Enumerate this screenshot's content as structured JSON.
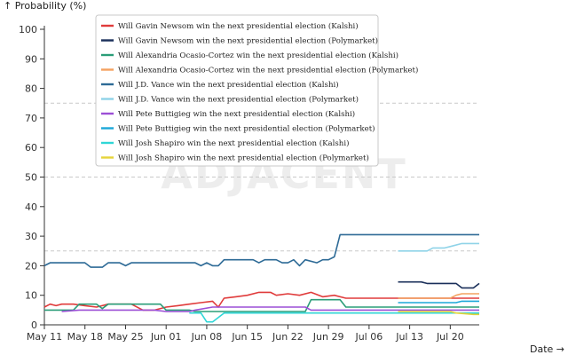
{
  "chart_data": {
    "type": "line",
    "title": "",
    "ylabel": "↑ Probability (%)",
    "xlabel": "Date →",
    "watermark": "ADJACENT",
    "ylim": [
      0,
      100
    ],
    "yticks": [
      0,
      10,
      20,
      30,
      40,
      50,
      60,
      70,
      80,
      90,
      100
    ],
    "reference_lines": [
      25,
      50,
      75
    ],
    "xlim": [
      "2025-05-11",
      "2025-07-25"
    ],
    "xticks": [
      {
        "date": "2025-05-11",
        "label": "May 11"
      },
      {
        "date": "2025-05-18",
        "label": "May 18"
      },
      {
        "date": "2025-05-25",
        "label": "May 25"
      },
      {
        "date": "2025-06-01",
        "label": "Jun 01"
      },
      {
        "date": "2025-06-08",
        "label": "Jun 08"
      },
      {
        "date": "2025-06-15",
        "label": "Jun 15"
      },
      {
        "date": "2025-06-22",
        "label": "Jun 22"
      },
      {
        "date": "2025-06-29",
        "label": "Jun 29"
      },
      {
        "date": "2025-07-06",
        "label": "Jul 06"
      },
      {
        "date": "2025-07-13",
        "label": "Jul 13"
      },
      {
        "date": "2025-07-20",
        "label": "Jul 20"
      }
    ],
    "legend_position": "top-center",
    "grid": false,
    "series": [
      {
        "name": "Will Gavin Newsom win the next presidential election (Kalshi)",
        "color": "#e03b3b",
        "points": [
          [
            "2025-05-11",
            6
          ],
          [
            "2025-05-12",
            7
          ],
          [
            "2025-05-13",
            6.5
          ],
          [
            "2025-05-14",
            7
          ],
          [
            "2025-05-16",
            7
          ],
          [
            "2025-05-18",
            6.5
          ],
          [
            "2025-05-20",
            6
          ],
          [
            "2025-05-22",
            7
          ],
          [
            "2025-05-26",
            7
          ],
          [
            "2025-05-28",
            5
          ],
          [
            "2025-05-30",
            5
          ],
          [
            "2025-06-01",
            6
          ],
          [
            "2025-06-03",
            6.5
          ],
          [
            "2025-06-05",
            7
          ],
          [
            "2025-06-07",
            7.5
          ],
          [
            "2025-06-09",
            8
          ],
          [
            "2025-06-10",
            6
          ],
          [
            "2025-06-11",
            9
          ],
          [
            "2025-06-13",
            9.5
          ],
          [
            "2025-06-15",
            10
          ],
          [
            "2025-06-17",
            11
          ],
          [
            "2025-06-19",
            11
          ],
          [
            "2025-06-20",
            10
          ],
          [
            "2025-06-22",
            10.5
          ],
          [
            "2025-06-24",
            10
          ],
          [
            "2025-06-26",
            11
          ],
          [
            "2025-06-28",
            9.5
          ],
          [
            "2025-06-30",
            10
          ],
          [
            "2025-07-02",
            9
          ],
          [
            "2025-07-25",
            9
          ]
        ]
      },
      {
        "name": "Will Gavin Newsom win the next presidential election (Polymarket)",
        "color": "#1a2f5a",
        "points": [
          [
            "2025-07-11",
            14.5
          ],
          [
            "2025-07-15",
            14.5
          ],
          [
            "2025-07-16",
            14
          ],
          [
            "2025-07-21",
            14
          ],
          [
            "2025-07-22",
            12.5
          ],
          [
            "2025-07-24",
            12.5
          ],
          [
            "2025-07-25",
            14
          ]
        ]
      },
      {
        "name": "Will Alexandria Ocasio-Cortez win the next presidential election (Kalshi)",
        "color": "#2a9d78",
        "points": [
          [
            "2025-05-11",
            5
          ],
          [
            "2025-05-13",
            5
          ],
          [
            "2025-05-16",
            5
          ],
          [
            "2025-05-17",
            7
          ],
          [
            "2025-05-20",
            7
          ],
          [
            "2025-05-21",
            5.5
          ],
          [
            "2025-05-22",
            7
          ],
          [
            "2025-05-31",
            7
          ],
          [
            "2025-06-01",
            5
          ],
          [
            "2025-06-05",
            5
          ],
          [
            "2025-06-06",
            4.5
          ],
          [
            "2025-06-25",
            4.5
          ],
          [
            "2025-06-26",
            8.5
          ],
          [
            "2025-07-01",
            8.5
          ],
          [
            "2025-07-02",
            6
          ],
          [
            "2025-07-25",
            6
          ]
        ]
      },
      {
        "name": "Will Alexandria Ocasio-Cortez win the next presidential election (Polymarket)",
        "color": "#f4a261",
        "points": [
          [
            "2025-07-11",
            9
          ],
          [
            "2025-07-20",
            9
          ],
          [
            "2025-07-21",
            10
          ],
          [
            "2025-07-22",
            10.5
          ],
          [
            "2025-07-25",
            10.5
          ]
        ]
      },
      {
        "name": "Will J.D. Vance win the next presidential election (Kalshi)",
        "color": "#2d6a96",
        "points": [
          [
            "2025-05-11",
            20
          ],
          [
            "2025-05-12",
            21
          ],
          [
            "2025-05-18",
            21
          ],
          [
            "2025-05-19",
            19.5
          ],
          [
            "2025-05-21",
            19.5
          ],
          [
            "2025-05-22",
            21
          ],
          [
            "2025-05-24",
            21
          ],
          [
            "2025-05-25",
            20
          ],
          [
            "2025-05-26",
            21
          ],
          [
            "2025-06-06",
            21
          ],
          [
            "2025-06-07",
            20
          ],
          [
            "2025-06-08",
            21
          ],
          [
            "2025-06-09",
            20
          ],
          [
            "2025-06-10",
            20
          ],
          [
            "2025-06-11",
            22
          ],
          [
            "2025-06-16",
            22
          ],
          [
            "2025-06-17",
            21
          ],
          [
            "2025-06-18",
            22
          ],
          [
            "2025-06-20",
            22
          ],
          [
            "2025-06-21",
            21
          ],
          [
            "2025-06-22",
            21
          ],
          [
            "2025-06-23",
            22
          ],
          [
            "2025-06-24",
            20
          ],
          [
            "2025-06-25",
            22
          ],
          [
            "2025-06-27",
            21
          ],
          [
            "2025-06-28",
            22
          ],
          [
            "2025-06-29",
            22
          ],
          [
            "2025-06-30",
            23
          ],
          [
            "2025-07-01",
            30.5
          ],
          [
            "2025-07-25",
            30.5
          ]
        ]
      },
      {
        "name": "Will J.D. Vance win the next presidential election (Polymarket)",
        "color": "#8fd3e8",
        "points": [
          [
            "2025-07-11",
            25
          ],
          [
            "2025-07-16",
            25
          ],
          [
            "2025-07-17",
            26
          ],
          [
            "2025-07-19",
            26
          ],
          [
            "2025-07-20",
            26.5
          ],
          [
            "2025-07-22",
            27.5
          ],
          [
            "2025-07-25",
            27.5
          ]
        ]
      },
      {
        "name": "Will Pete Buttigieg win the next presidential election (Kalshi)",
        "color": "#9c4fd6",
        "points": [
          [
            "2025-05-14",
            4.5
          ],
          [
            "2025-05-17",
            5
          ],
          [
            "2025-05-24",
            5
          ],
          [
            "2025-05-26",
            5
          ],
          [
            "2025-05-30",
            5
          ],
          [
            "2025-06-01",
            4.5
          ],
          [
            "2025-06-05",
            4.5
          ],
          [
            "2025-06-06",
            5
          ],
          [
            "2025-06-09",
            6
          ],
          [
            "2025-06-12",
            6
          ],
          [
            "2025-06-25",
            6
          ],
          [
            "2025-06-26",
            5
          ],
          [
            "2025-07-25",
            5
          ]
        ]
      },
      {
        "name": "Will Pete Buttigieg win the next presidential election (Polymarket)",
        "color": "#1ca7d9",
        "points": [
          [
            "2025-07-11",
            7.5
          ],
          [
            "2025-07-21",
            7.5
          ],
          [
            "2025-07-22",
            8
          ],
          [
            "2025-07-25",
            8
          ]
        ]
      },
      {
        "name": "Will Josh Shapiro win the next presidential election (Kalshi)",
        "color": "#2fd6d6",
        "points": [
          [
            "2025-06-05",
            4
          ],
          [
            "2025-06-07",
            4
          ],
          [
            "2025-06-08",
            1
          ],
          [
            "2025-06-09",
            1
          ],
          [
            "2025-06-10",
            2.5
          ],
          [
            "2025-06-11",
            4
          ],
          [
            "2025-07-25",
            4
          ]
        ]
      },
      {
        "name": "Will Josh Shapiro win the next presidential election (Polymarket)",
        "color": "#e6d43a",
        "points": [
          [
            "2025-07-11",
            4.5
          ],
          [
            "2025-07-20",
            4.5
          ],
          [
            "2025-07-21",
            4
          ],
          [
            "2025-07-24",
            3.5
          ],
          [
            "2025-07-25",
            3.5
          ]
        ]
      }
    ]
  }
}
